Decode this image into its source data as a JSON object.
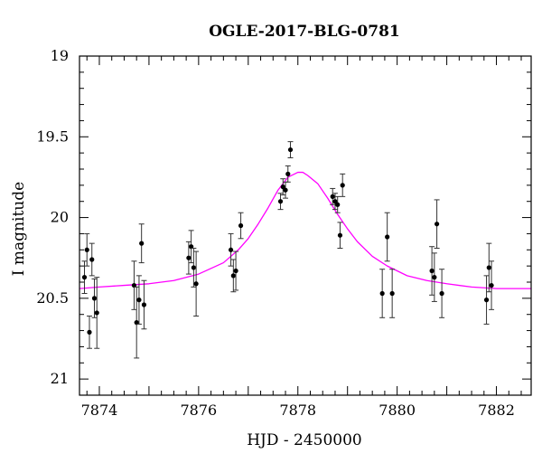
{
  "chart_data": {
    "type": "scatter",
    "title": "OGLE-2017-BLG-0781",
    "xlabel": "HJD - 2450000",
    "ylabel": "I magnitude",
    "xlim": [
      7873.6,
      7882.7
    ],
    "ylim": [
      21.1,
      19.0
    ],
    "y_inverted": true,
    "xticks": [
      7874,
      7876,
      7878,
      7880,
      7882
    ],
    "xtick_labels": [
      "7874",
      "7876",
      "7878",
      "7880",
      "7882"
    ],
    "yticks": [
      19,
      19.5,
      20,
      20.5,
      21
    ],
    "ytick_labels": [
      "19",
      "19.5",
      "20",
      "20.5",
      "21"
    ],
    "grid": false,
    "marker_color": "#000000",
    "model_color": "#ff00ff",
    "points": [
      {
        "x": 7873.7,
        "y": 20.37,
        "err": 0.1
      },
      {
        "x": 7873.75,
        "y": 20.2,
        "err": 0.1
      },
      {
        "x": 7873.8,
        "y": 20.71,
        "err": 0.1
      },
      {
        "x": 7873.85,
        "y": 20.26,
        "err": 0.1
      },
      {
        "x": 7873.9,
        "y": 20.5,
        "err": 0.12
      },
      {
        "x": 7873.95,
        "y": 20.59,
        "err": 0.22
      },
      {
        "x": 7874.7,
        "y": 20.42,
        "err": 0.15
      },
      {
        "x": 7874.75,
        "y": 20.65,
        "err": 0.22
      },
      {
        "x": 7874.8,
        "y": 20.51,
        "err": 0.15
      },
      {
        "x": 7874.85,
        "y": 20.16,
        "err": 0.12
      },
      {
        "x": 7874.9,
        "y": 20.54,
        "err": 0.15
      },
      {
        "x": 7875.8,
        "y": 20.25,
        "err": 0.1
      },
      {
        "x": 7875.85,
        "y": 20.18,
        "err": 0.1
      },
      {
        "x": 7875.9,
        "y": 20.31,
        "err": 0.12
      },
      {
        "x": 7875.95,
        "y": 20.41,
        "err": 0.2
      },
      {
        "x": 7876.65,
        "y": 20.2,
        "err": 0.1
      },
      {
        "x": 7876.7,
        "y": 20.36,
        "err": 0.1
      },
      {
        "x": 7876.75,
        "y": 20.33,
        "err": 0.12
      },
      {
        "x": 7876.85,
        "y": 20.05,
        "err": 0.08
      },
      {
        "x": 7877.65,
        "y": 19.9,
        "err": 0.05
      },
      {
        "x": 7877.7,
        "y": 19.81,
        "err": 0.05
      },
      {
        "x": 7877.75,
        "y": 19.83,
        "err": 0.05
      },
      {
        "x": 7877.8,
        "y": 19.73,
        "err": 0.05
      },
      {
        "x": 7877.85,
        "y": 19.58,
        "err": 0.05
      },
      {
        "x": 7878.7,
        "y": 19.87,
        "err": 0.05
      },
      {
        "x": 7878.75,
        "y": 19.9,
        "err": 0.05
      },
      {
        "x": 7878.8,
        "y": 19.92,
        "err": 0.05
      },
      {
        "x": 7878.85,
        "y": 20.11,
        "err": 0.08
      },
      {
        "x": 7878.9,
        "y": 19.8,
        "err": 0.07
      },
      {
        "x": 7879.7,
        "y": 20.47,
        "err": 0.15
      },
      {
        "x": 7879.8,
        "y": 20.12,
        "err": 0.15
      },
      {
        "x": 7879.9,
        "y": 20.47,
        "err": 0.15
      },
      {
        "x": 7880.7,
        "y": 20.33,
        "err": 0.15
      },
      {
        "x": 7880.75,
        "y": 20.37,
        "err": 0.15
      },
      {
        "x": 7880.8,
        "y": 20.04,
        "err": 0.15
      },
      {
        "x": 7880.9,
        "y": 20.47,
        "err": 0.15
      },
      {
        "x": 7881.8,
        "y": 20.51,
        "err": 0.15
      },
      {
        "x": 7881.85,
        "y": 20.31,
        "err": 0.15
      },
      {
        "x": 7881.9,
        "y": 20.42,
        "err": 0.15
      }
    ],
    "model": {
      "x": [
        7873.6,
        7874.0,
        7874.5,
        7875.0,
        7875.5,
        7876.0,
        7876.5,
        7876.8,
        7877.0,
        7877.2,
        7877.4,
        7877.6,
        7877.8,
        7878.0,
        7878.1,
        7878.2,
        7878.4,
        7878.6,
        7878.8,
        7879.0,
        7879.2,
        7879.5,
        7879.8,
        7880.2,
        7880.6,
        7881.0,
        7881.5,
        7882.0,
        7882.7
      ],
      "y": [
        20.44,
        20.43,
        20.42,
        20.41,
        20.39,
        20.35,
        20.28,
        20.2,
        20.13,
        20.04,
        19.94,
        19.83,
        19.75,
        19.72,
        19.72,
        19.74,
        19.79,
        19.88,
        19.98,
        20.07,
        20.15,
        20.24,
        20.3,
        20.36,
        20.39,
        20.41,
        20.43,
        20.44,
        20.44
      ]
    }
  }
}
